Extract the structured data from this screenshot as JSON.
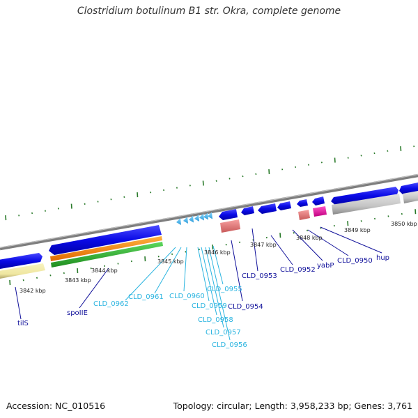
{
  "title": "Clostridium botulinum B1 str. Okra, complete genome",
  "footer": {
    "accession": "Accession: NC_010516",
    "topology": "Topology: circular; Length: 3,958,233 bp; Genes: 3,761"
  },
  "kbp_labels": [
    "3842 kbp",
    "3843 kbp",
    "3844 kbp",
    "3845 kbp",
    "3846 kbp",
    "3847 kbp",
    "3848 kbp",
    "3849 kbp",
    "3850 kbp"
  ],
  "gene_labels": [
    "tilS",
    "spoIIE",
    "CLD_0962",
    "CLD_0961",
    "CLD_0960",
    "CLD_0959",
    "CLD_0958",
    "CLD_0957",
    "CLD_0956",
    "CLD_0955",
    "CLD_0954",
    "CLD_0953",
    "CLD_0952",
    "yabP",
    "CLD_0950",
    "hup"
  ],
  "colors": {
    "backbone": "#8a8a8a",
    "cds": "#1010e0",
    "small_cds": "#49b8ee",
    "label_dark": "#10109a",
    "label_light": "#2ab4e0",
    "tick": "#2a7a2a"
  }
}
